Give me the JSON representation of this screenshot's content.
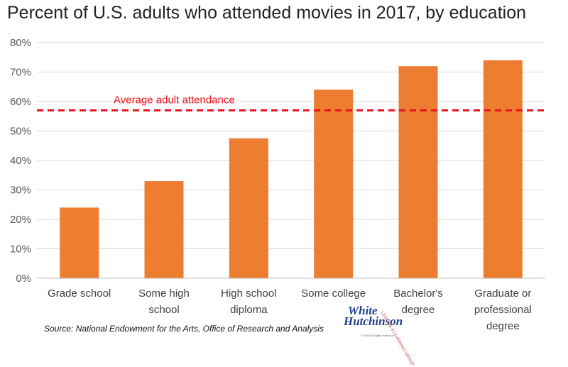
{
  "chart_data": {
    "type": "bar",
    "title": "Percent of U.S. adults who attended movies in 2017, by education",
    "categories": [
      [
        "Grade school"
      ],
      [
        "Some high",
        "school"
      ],
      [
        "High school",
        "diploma"
      ],
      [
        "Some college"
      ],
      [
        "Bachelor's",
        "degree"
      ],
      [
        "Graduate or",
        "professional",
        "degree"
      ]
    ],
    "values": [
      24,
      33,
      47.5,
      64,
      72,
      74
    ],
    "ylim": [
      0,
      80
    ],
    "yticks": [
      "0%",
      "10%",
      "20%",
      "30%",
      "40%",
      "50%",
      "60%",
      "70%",
      "80%"
    ],
    "reference_line": {
      "label": "Average adult attendance",
      "value": 57,
      "color": "#e8141c",
      "style": "dashed"
    },
    "bar_color": "#ed7d31",
    "grid": "horizontal"
  },
  "source": "Source: National Endowment for the Arts, Office of Research and Analysis",
  "logo": {
    "line1": "White",
    "line2": "Hutchinson",
    "sub": "LEISURE & LEARNING GROUP",
    "copyright": "© 2019 All rights reserved"
  }
}
